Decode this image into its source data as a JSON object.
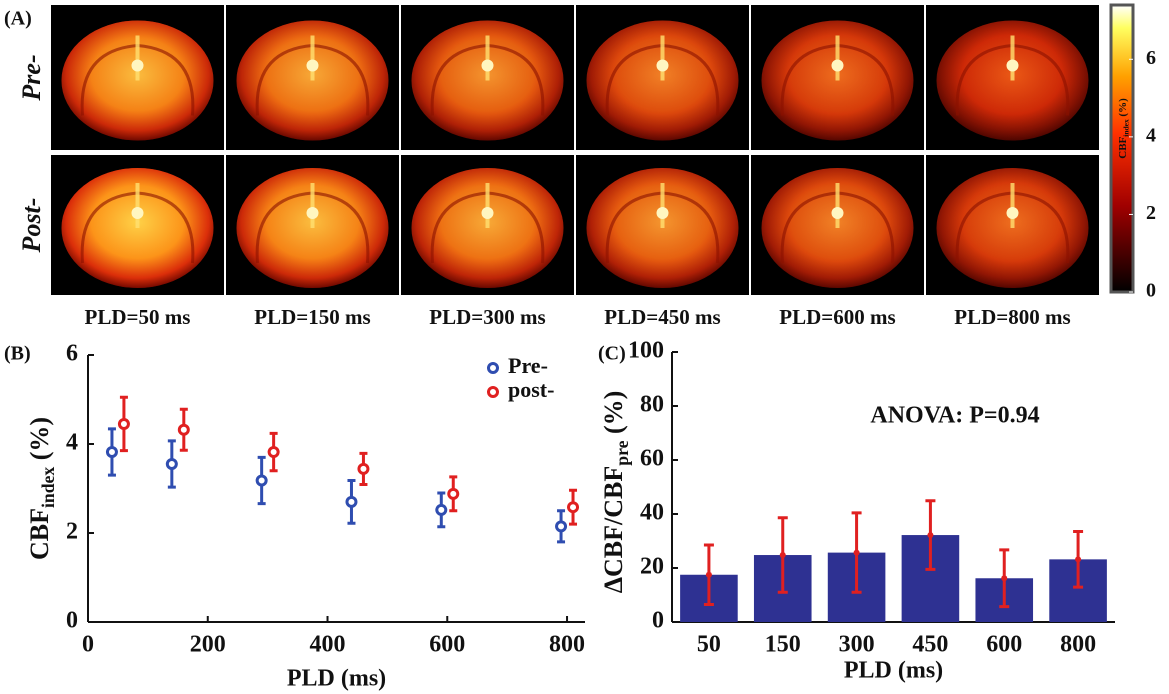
{
  "chart_data": [
    {
      "type": "image-grid",
      "panel_label": "(A)",
      "rows": [
        "Pre-",
        "Post-"
      ],
      "row_colors": [
        "#2f3ea8",
        "#e02020"
      ],
      "columns": [
        "PLD=50 ms",
        "PLD=150 ms",
        "PLD=300 ms",
        "PLD=450 ms",
        "PLD=600 ms",
        "PLD=800 ms"
      ],
      "colorbar": {
        "label": [
          "CBF",
          "index",
          " (%)"
        ],
        "lim": [
          0,
          7.4
        ],
        "ticks": [
          0,
          2,
          4,
          6
        ]
      }
    },
    {
      "type": "scatter",
      "panel_label": "(B)",
      "xlabel": "PLD (ms)",
      "ylabel": [
        "CBF",
        "index",
        " (%)"
      ],
      "xlim": [
        0,
        830
      ],
      "xticks": [
        0,
        200,
        400,
        600,
        800
      ],
      "ylim": [
        0,
        6
      ],
      "yticks": [
        0,
        2,
        4,
        6
      ],
      "legend": "upper right",
      "series": [
        {
          "name": "Pre-",
          "color": "#2f4db0",
          "x": [
            40,
            140,
            290,
            440,
            590,
            790
          ],
          "values": [
            3.82,
            3.55,
            3.18,
            2.7,
            2.52,
            2.15
          ],
          "errors": [
            0.52,
            0.52,
            0.52,
            0.48,
            0.38,
            0.35
          ]
        },
        {
          "name": "post-",
          "color": "#e02020",
          "x": [
            60,
            160,
            310,
            460,
            610,
            810
          ],
          "values": [
            4.45,
            4.32,
            3.82,
            3.44,
            2.88,
            2.58
          ],
          "errors": [
            0.6,
            0.46,
            0.42,
            0.35,
            0.38,
            0.38
          ]
        }
      ]
    },
    {
      "type": "bar",
      "panel_label": "(C)",
      "xlabel": "PLD (ms)",
      "ylabel": [
        "ΔCBF/CBF",
        "pre",
        " (%)"
      ],
      "categories": [
        "50",
        "150",
        "300",
        "450",
        "600",
        "800"
      ],
      "values": [
        17.5,
        24.8,
        25.7,
        32.2,
        16.2,
        23.2
      ],
      "errors": [
        11,
        13.8,
        14.7,
        12.7,
        10.5,
        10.3
      ],
      "color": "#2e3192",
      "error_color": "#e02020",
      "ylim": [
        0,
        100
      ],
      "yticks": [
        0,
        20,
        40,
        60,
        80,
        100
      ],
      "annotation": "ANOVA: P=0.94",
      "annotation_color": "#2e3d9a"
    }
  ]
}
